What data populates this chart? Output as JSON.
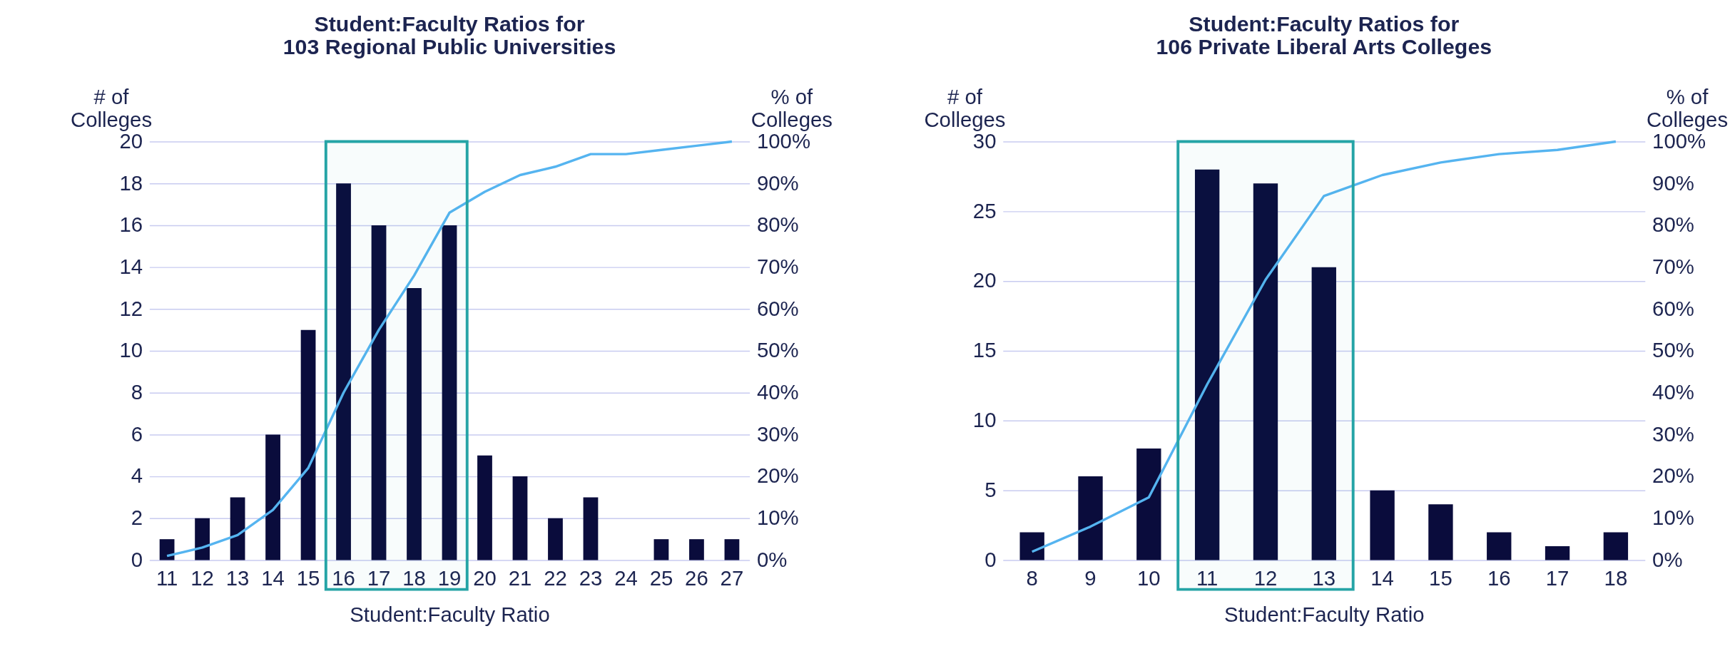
{
  "chart_data": [
    {
      "type": "bar",
      "title": "Student:Faculty Ratios for\n103 Regional Public Universities",
      "xlabel": "Student:Faculty Ratio",
      "ylabel": "# of\nColleges",
      "y2label": "% of\nColleges",
      "categories": [
        "11",
        "12",
        "13",
        "14",
        "15",
        "16",
        "17",
        "18",
        "19",
        "20",
        "21",
        "22",
        "23",
        "24",
        "25",
        "26",
        "27"
      ],
      "series": [
        {
          "type": "bar",
          "color": "#0a0c3c",
          "values": [
            1,
            2,
            3,
            6,
            11,
            18,
            16,
            13,
            16,
            5,
            4,
            2,
            3,
            0,
            1,
            1,
            1
          ]
        },
        {
          "type": "line",
          "axis": "y2",
          "color": "#55b4f0",
          "values": [
            1,
            3,
            6,
            12,
            22,
            40,
            55,
            68,
            83,
            88,
            92,
            94,
            97,
            97,
            98,
            99,
            100
          ]
        }
      ],
      "ylim": [
        0,
        20
      ],
      "yticks": [
        0,
        2,
        4,
        6,
        8,
        10,
        12,
        14,
        16,
        18,
        20
      ],
      "y2lim": [
        0,
        100
      ],
      "y2ticks": [
        {
          "value": 0,
          "label": "0%"
        },
        {
          "value": 10,
          "label": "10%"
        },
        {
          "value": 20,
          "label": "20%"
        },
        {
          "value": 30,
          "label": "30%"
        },
        {
          "value": 40,
          "label": "40%"
        },
        {
          "value": 50,
          "label": "50%"
        },
        {
          "value": 60,
          "label": "60%"
        },
        {
          "value": 70,
          "label": "70%"
        },
        {
          "value": 80,
          "label": "80%"
        },
        {
          "value": 90,
          "label": "90%"
        },
        {
          "value": 100,
          "label": "100%"
        }
      ],
      "bands": [
        {
          "axis": "x",
          "from": "16",
          "to": "19",
          "color": "#25a4a6"
        }
      ],
      "grid": "y",
      "marker": "none",
      "line_style": "solid"
    },
    {
      "type": "bar",
      "title": "Student:Faculty Ratios for\n106 Private Liberal Arts Colleges",
      "xlabel": "Student:Faculty Ratio",
      "ylabel": "# of\nColleges",
      "y2label": "% of\nColleges",
      "categories": [
        "8",
        "9",
        "10",
        "11",
        "12",
        "13",
        "14",
        "15",
        "16",
        "17",
        "18"
      ],
      "series": [
        {
          "type": "bar",
          "color": "#0a0c3c",
          "values": [
            2,
            6,
            8,
            28,
            27,
            21,
            5,
            4,
            2,
            1,
            2
          ]
        },
        {
          "type": "line",
          "axis": "y2",
          "color": "#55b4f0",
          "values": [
            2,
            8,
            15,
            42,
            67,
            87,
            92,
            95,
            97,
            98,
            100
          ]
        }
      ],
      "ylim": [
        0,
        30
      ],
      "yticks": [
        0,
        5,
        10,
        15,
        20,
        25,
        30
      ],
      "y2lim": [
        0,
        100
      ],
      "y2ticks": [
        {
          "value": 0,
          "label": "0%"
        },
        {
          "value": 10,
          "label": "10%"
        },
        {
          "value": 20,
          "label": "20%"
        },
        {
          "value": 30,
          "label": "30%"
        },
        {
          "value": 40,
          "label": "40%"
        },
        {
          "value": 50,
          "label": "50%"
        },
        {
          "value": 60,
          "label": "60%"
        },
        {
          "value": 70,
          "label": "70%"
        },
        {
          "value": 80,
          "label": "80%"
        },
        {
          "value": 90,
          "label": "90%"
        },
        {
          "value": 100,
          "label": "100%"
        }
      ],
      "bands": [
        {
          "axis": "x",
          "from": "11",
          "to": "13",
          "color": "#25a4a6"
        }
      ],
      "grid": "y",
      "marker": "none",
      "line_style": "solid"
    }
  ]
}
